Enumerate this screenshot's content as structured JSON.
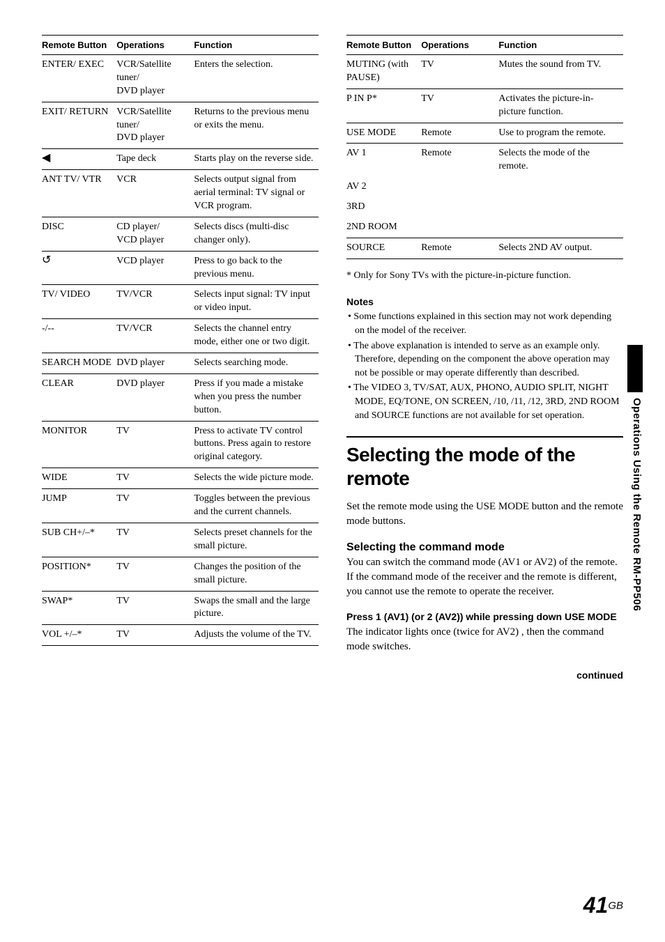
{
  "columns_header": [
    "Remote Button",
    "Operations",
    "Function"
  ],
  "left_table": [
    {
      "button": "ENTER/ EXEC",
      "ops": "VCR/Satellite tuner/\nDVD player",
      "func": "Enters the selection."
    },
    {
      "button": "EXIT/\nRETURN",
      "ops": "VCR/Satellite tuner/\nDVD player",
      "func": "Returns to the previous menu or exits the menu."
    },
    {
      "button": "◀",
      "ops": "Tape deck",
      "func": "Starts play on the reverse side.",
      "icon": true
    },
    {
      "button": "ANT\nTV/ VTR",
      "ops": "VCR",
      "func": "Selects output signal from aerial terminal: TV signal or VCR program."
    },
    {
      "button": "DISC",
      "ops": "CD player/\nVCD player",
      "func": "Selects discs (multi-disc changer only)."
    },
    {
      "button": "↺",
      "ops": "VCD player",
      "func": "Press to go back to the previous menu.",
      "icon": true
    },
    {
      "button": "TV/\nVIDEO",
      "ops": "TV/VCR",
      "func": "Selects input signal: TV input or video input."
    },
    {
      "button": "-/--",
      "ops": "TV/VCR",
      "func": "Selects the channel entry mode, either one or two digit."
    },
    {
      "button": "SEARCH MODE",
      "ops": "DVD player",
      "func": "Selects searching mode."
    },
    {
      "button": "CLEAR",
      "ops": "DVD player",
      "func": "Press if you made a mistake when you press the number button."
    },
    {
      "button": "MONITOR",
      "ops": "TV",
      "func": "Press to activate TV control buttons. Press again to restore original category."
    },
    {
      "button": "WIDE",
      "ops": "TV",
      "func": "Selects the wide picture mode."
    },
    {
      "button": "JUMP",
      "ops": "TV",
      "func": "Toggles between the previous and the current channels."
    },
    {
      "button": "SUB\nCH+/–*",
      "ops": "TV",
      "func": "Selects preset channels for the small picture."
    },
    {
      "button": "POSITION*",
      "ops": "TV",
      "func": "Changes the position of the small picture."
    },
    {
      "button": "SWAP*",
      "ops": "TV",
      "func": "Swaps the small and the large picture."
    },
    {
      "button": "VOL\n+/–*",
      "ops": "TV",
      "func": "Adjusts the volume of the TV."
    }
  ],
  "right_table": [
    {
      "button": "MUTING (with PAUSE)",
      "ops": "TV",
      "func": "Mutes the sound from TV."
    },
    {
      "button": "P IN P*",
      "ops": "TV",
      "func": "Activates the picture-in-picture function."
    },
    {
      "button": "USE MODE",
      "ops": "Remote",
      "func": "Use to program the remote."
    },
    {
      "button": "AV 1",
      "ops": "Remote",
      "func": "Selects the mode of the remote.",
      "noborder": true
    },
    {
      "button": "AV 2",
      "ops": "",
      "func": "",
      "noborder": true
    },
    {
      "button": "3RD",
      "ops": "",
      "func": "",
      "noborder": true
    },
    {
      "button": "2ND ROOM",
      "ops": "",
      "func": ""
    },
    {
      "button": "SOURCE",
      "ops": "Remote",
      "func": "Selects 2ND AV output."
    }
  ],
  "footnote": "* Only for Sony TVs with the picture-in-picture function.",
  "notes_heading": "Notes",
  "notes": [
    "Some functions explained in this section may not work depending on the model of the receiver.",
    "The above explanation is intended to serve as an example only.\nTherefore, depending on the component the above operation may not be possible or may operate differently than described.",
    "The VIDEO 3, TV/SAT, AUX, PHONO, AUDIO SPLIT, NIGHT MODE, EQ/TONE, ON SCREEN, /10, /11, /12, 3RD, 2ND ROOM and SOURCE functions are not available for set operation."
  ],
  "section_title": "Selecting the mode of the remote",
  "intro": "Set the remote mode using the USE MODE button and the remote mode buttons.",
  "subheading": "Selecting the command mode",
  "sub_body": "You can switch the command mode (AV1 or AV2) of the remote. If the command mode of the receiver and the remote is different, you cannot use the remote to operate the receiver.",
  "step_heading": "Press 1 (AV1) (or 2 (AV2)) while pressing down USE MODE",
  "step_body": "The indicator lights once (twice for AV2) , then the command mode switches.",
  "continued": "continued",
  "side_tab": "Operations Using the Remote RM-PP506",
  "page_num": "41",
  "page_suffix": "GB"
}
